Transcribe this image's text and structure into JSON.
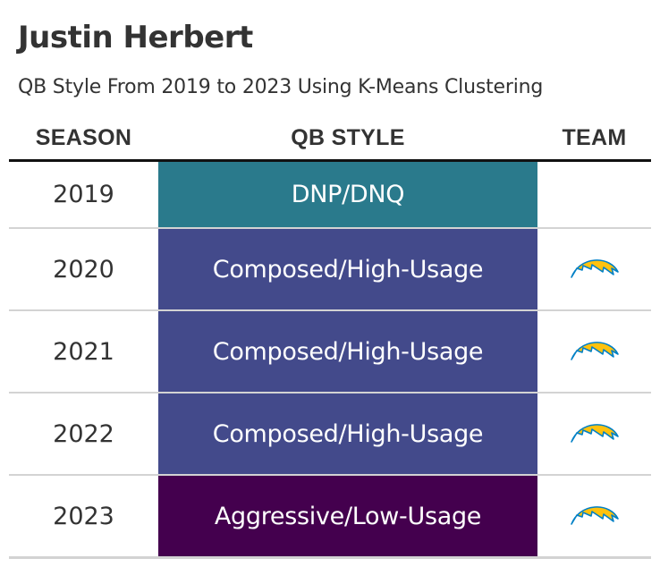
{
  "title": "Justin Herbert",
  "subtitle": "QB Style From 2019 to 2023 Using K-Means Clustering",
  "columns": {
    "season": "SEASON",
    "style": "QB STYLE",
    "team": "TEAM"
  },
  "rows": [
    {
      "season": "2019",
      "style": "DNP/DNQ",
      "style_color": "#2a7a8c",
      "team_icon": null
    },
    {
      "season": "2020",
      "style": "Composed/High-Usage",
      "style_color": "#434a8b",
      "team_icon": "chargers-bolt-logo"
    },
    {
      "season": "2021",
      "style": "Composed/High-Usage",
      "style_color": "#434a8b",
      "team_icon": "chargers-bolt-logo"
    },
    {
      "season": "2022",
      "style": "Composed/High-Usage",
      "style_color": "#434a8b",
      "team_icon": "chargers-bolt-logo"
    },
    {
      "season": "2023",
      "style": "Aggressive/Low-Usage",
      "style_color": "#44004e",
      "team_icon": "chargers-bolt-logo"
    }
  ],
  "colors": {
    "text": "#333333",
    "header_rule": "#111111",
    "row_divider": "#d3d3d3",
    "bolt_gold": "#ffc20e",
    "bolt_blue": "#0080c6"
  }
}
